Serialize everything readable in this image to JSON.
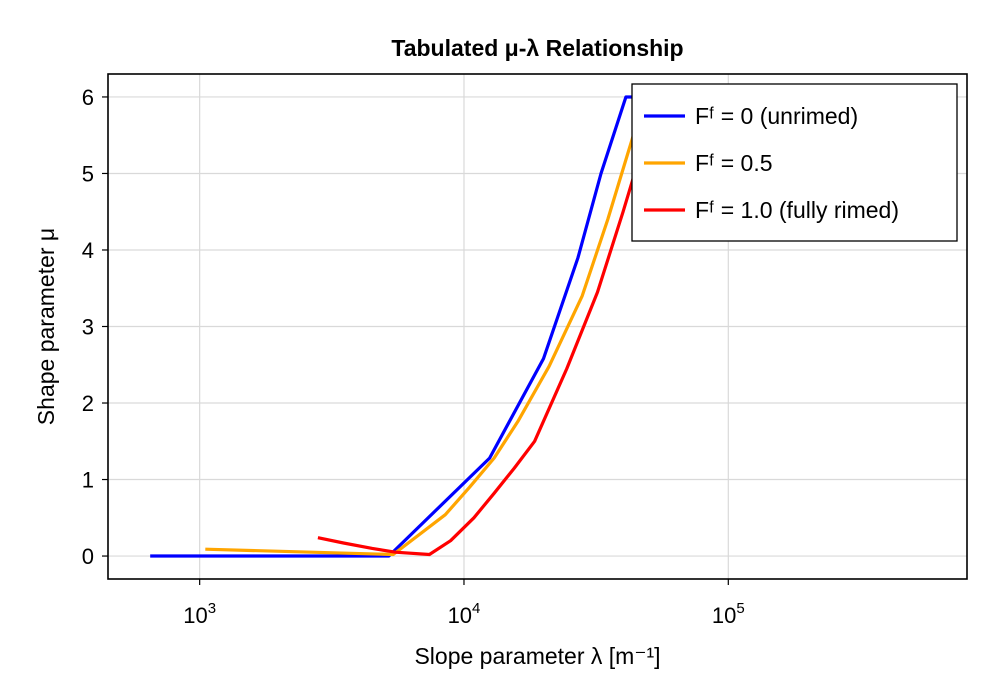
{
  "chart_data": {
    "type": "line",
    "title": "Tabulated μ-λ Relationship",
    "xlabel": "Slope parameter λ [m⁻¹]",
    "ylabel": "Shape parameter μ",
    "xscale": "log",
    "xlim": [
      450,
      800000
    ],
    "ylim": [
      -0.3,
      6.3
    ],
    "x_ticks": [
      {
        "value": 1000,
        "base": "10",
        "exp": "3"
      },
      {
        "value": 10000,
        "base": "10",
        "exp": "4"
      },
      {
        "value": 100000,
        "base": "10",
        "exp": "5"
      }
    ],
    "y_ticks": [
      0,
      1,
      2,
      3,
      4,
      5,
      6
    ],
    "grid": true,
    "legend_position": "top-right",
    "series": [
      {
        "name": "Fᶠ = 0 (unrimed)",
        "color": "#0000ff",
        "x": [
          650,
          5200,
          12500,
          20000,
          27000,
          33000,
          41000,
          46000
        ],
        "y": [
          0,
          0,
          1.28,
          2.58,
          3.9,
          5.0,
          6.0,
          6.0
        ]
      },
      {
        "name": "Fᶠ = 0.5",
        "color": "#ffa500",
        "x": [
          1050,
          5400,
          8500,
          10500,
          13000,
          16000,
          21000,
          28000,
          35000,
          42000,
          47500
        ],
        "y": [
          0.09,
          0.02,
          0.54,
          0.9,
          1.28,
          1.76,
          2.48,
          3.4,
          4.4,
          5.3,
          5.9
        ]
      },
      {
        "name": "Fᶠ = 1.0 (fully rimed)",
        "color": "#ff0000",
        "x": [
          2800,
          3500,
          4500,
          5500,
          7400,
          8900,
          10900,
          13000,
          15500,
          18500,
          24500,
          32000,
          40000,
          46000
        ],
        "y": [
          0.24,
          0.17,
          0.1,
          0.05,
          0.02,
          0.2,
          0.5,
          0.82,
          1.15,
          1.5,
          2.45,
          3.45,
          4.5,
          5.2
        ]
      }
    ]
  }
}
